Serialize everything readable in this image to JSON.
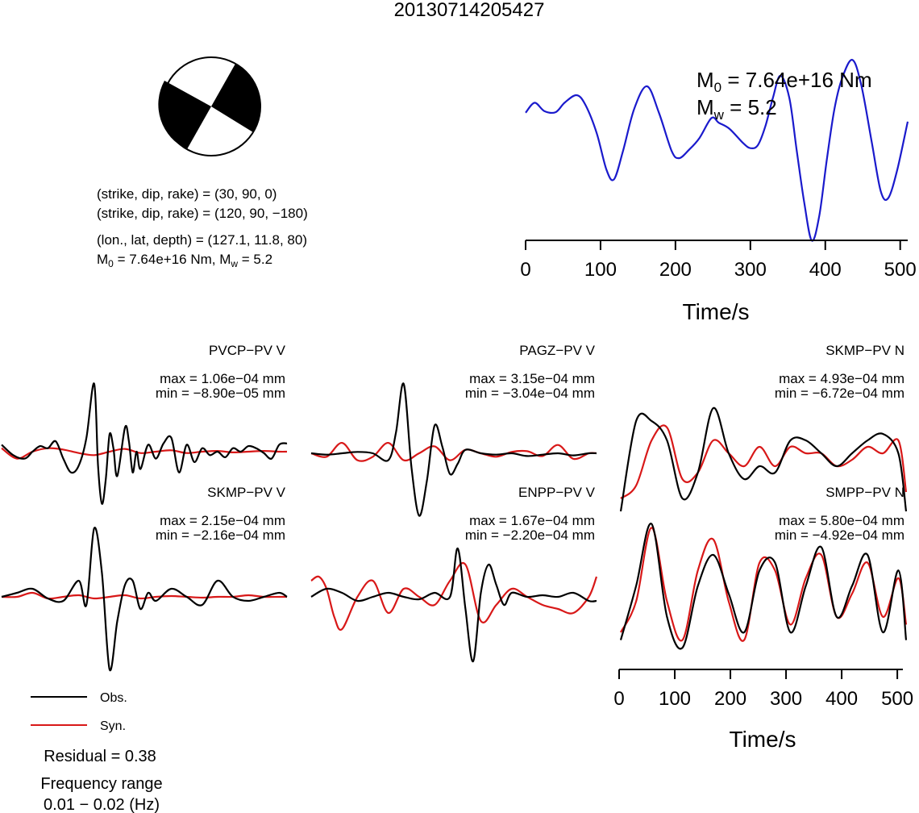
{
  "title": "20130714205427",
  "mechanism": {
    "line1": "(strike, dip, rake) = (30, 90, 0)",
    "line2": "(strike, dip, rake) = (120, 90, −180)",
    "line3": "(lon., lat, depth) = (127.1, 11.8, 80)",
    "m0_prefix": "M",
    "m0_sub": "0",
    "m0_value": " = 7.64e+16 Nm, M",
    "mw_sub": "w",
    "mw_value": " = 5.2"
  },
  "stf": {
    "m0_label": "M",
    "m0_sub": "0",
    "m0_text": " = 7.64e+16 Nm",
    "mw_label": "M",
    "mw_sub": "w",
    "mw_text": " = 5.2",
    "xlabel": "Time/s",
    "ticks": [
      "0",
      "100",
      "200",
      "300",
      "400",
      "500"
    ]
  },
  "bottom_axis": {
    "xlabel": "Time/s",
    "ticks": [
      "0",
      "100",
      "200",
      "300",
      "400",
      "500"
    ]
  },
  "legend": {
    "obs": "Obs.",
    "syn": "Syn.",
    "obs_color": "#000000",
    "syn_color": "#d81818",
    "stf_color": "#1a1acc"
  },
  "residual": "Residual = 0.38",
  "freq_label": "Frequency range",
  "freq_value": "0.01 − 0.02 (Hz)",
  "stations": [
    {
      "name": "PVCP−PV V",
      "max": "max = 1.06e−04 mm",
      "min": "min = −8.90e−05 mm"
    },
    {
      "name": "PAGZ−PV V",
      "max": "max = 3.15e−04 mm",
      "min": "min = −3.04e−04 mm"
    },
    {
      "name": "SKMP−PV N",
      "max": "max = 4.93e−04 mm",
      "min": "min = −6.72e−04 mm"
    },
    {
      "name": "SKMP−PV V",
      "max": "max = 2.15e−04 mm",
      "min": "min = −2.16e−04 mm"
    },
    {
      "name": "ENPP−PV V",
      "max": "max = 1.67e−04 mm",
      "min": "min = −2.20e−04 mm"
    },
    {
      "name": "SMPP−PV N",
      "max": "max = 5.80e−04 mm",
      "min": "min = −4.92e−04 mm"
    }
  ],
  "chart_data": [
    {
      "type": "line",
      "series": [
        {
          "t": [
            0,
            12,
            25,
            40,
            52,
            68,
            80,
            95,
            108,
            118,
            130,
            145,
            162,
            178,
            195,
            205,
            218,
            232,
            248,
            258,
            272,
            290,
            300,
            310,
            320,
            330,
            340,
            352,
            362,
            372,
            382,
            392,
            402,
            412,
            422,
            436,
            448,
            462,
            474,
            484,
            496,
            510
          ],
          "values": [
            0.55,
            0.72,
            0.58,
            0.56,
            0.72,
            0.85,
            0.68,
            0.2,
            -0.42,
            -0.58,
            -0.1,
            0.62,
            1.0,
            0.55,
            -0.1,
            -0.22,
            -0.08,
            0.12,
            0.46,
            0.38,
            0.28,
            0.04,
            -0.05,
            0.0,
            0.32,
            0.8,
            1.18,
            0.8,
            -0.1,
            -0.98,
            -1.62,
            -1.2,
            -0.25,
            0.6,
            1.12,
            1.45,
            1.02,
            0.05,
            -0.78,
            -0.9,
            -0.42,
            0.4
          ],
          "name": ""
        }
      ],
      "xlabel": "Time/s",
      "xlim": [
        0,
        510
      ]
    },
    {
      "type": "line",
      "station": "PVCP−PV V",
      "series": [
        {
          "name": "Obs.",
          "t": [
            0,
            15,
            30,
            40,
            50,
            60,
            70,
            80,
            90,
            100,
            110,
            120,
            125,
            130,
            135,
            140,
            145,
            150,
            160,
            165,
            170,
            175,
            180,
            190,
            200,
            210,
            220,
            230,
            240,
            250,
            260,
            270,
            280,
            290,
            300,
            310,
            320,
            330,
            340,
            350,
            360,
            370
          ],
          "values": [
            0.1,
            -0.05,
            -0.1,
            0.0,
            0.08,
            0.05,
            0.15,
            -0.1,
            -0.3,
            -0.2,
            0.2,
            0.98,
            -0.2,
            -0.75,
            -0.4,
            0.25,
            0.05,
            -0.35,
            0.35,
            0.15,
            -0.3,
            0.0,
            -0.25,
            0.1,
            -0.1,
            0.12,
            0.2,
            -0.3,
            0.1,
            -0.15,
            0.05,
            -0.05,
            0.0,
            -0.08,
            0.05,
            0.0,
            0.08,
            0.05,
            -0.02,
            -0.1,
            0.1,
            0.12
          ]
        },
        {
          "name": "Syn.",
          "t": [
            0,
            20,
            40,
            60,
            80,
            100,
            120,
            140,
            160,
            180,
            200,
            220,
            240,
            260,
            280,
            300,
            320,
            340,
            360,
            370
          ],
          "values": [
            0.05,
            -0.1,
            0.0,
            0.05,
            0.03,
            -0.02,
            -0.05,
            0.0,
            0.04,
            -0.02,
            0.0,
            0.02,
            -0.02,
            0.0,
            0.01,
            -0.01,
            0.0,
            0.01,
            0.0,
            0.0
          ]
        }
      ]
    },
    {
      "type": "line",
      "station": "PAGZ−PV V",
      "series": [
        {
          "name": "Obs.",
          "t": [
            0,
            20,
            40,
            60,
            80,
            100,
            110,
            120,
            130,
            140,
            150,
            160,
            170,
            180,
            190,
            200,
            220,
            240,
            260,
            280,
            300,
            320,
            340,
            360,
            370
          ],
          "values": [
            0.0,
            -0.02,
            0.0,
            0.02,
            0.0,
            -0.1,
            0.3,
            1.0,
            -0.2,
            -0.9,
            -0.4,
            0.4,
            0.1,
            -0.3,
            -0.15,
            0.05,
            0.0,
            -0.02,
            0.0,
            -0.04,
            -0.02,
            0.0,
            -0.03,
            0.0,
            0.0
          ]
        },
        {
          "name": "Syn.",
          "t": [
            0,
            20,
            40,
            60,
            80,
            100,
            120,
            140,
            160,
            180,
            200,
            220,
            240,
            260,
            280,
            300,
            320,
            340,
            360,
            370
          ],
          "values": [
            0.0,
            -0.05,
            0.15,
            -0.1,
            -0.05,
            0.15,
            -0.1,
            0.0,
            0.1,
            -0.1,
            0.05,
            0.0,
            -0.05,
            0.02,
            0.03,
            -0.04,
            0.12,
            -0.08,
            0.0,
            0.0
          ]
        }
      ]
    },
    {
      "type": "line",
      "station": "SKMP−PV N",
      "series": [
        {
          "name": "Obs.",
          "t": [
            0,
            20,
            40,
            60,
            80,
            100,
            120,
            140,
            160,
            180,
            200,
            220,
            240,
            260,
            280,
            300,
            320,
            340,
            360,
            370
          ],
          "values": [
            -0.8,
            0.6,
            0.6,
            0.3,
            -0.6,
            -0.2,
            0.8,
            0.1,
            -0.3,
            -0.1,
            -0.2,
            0.3,
            0.3,
            0.1,
            -0.1,
            0.1,
            0.3,
            0.4,
            0.1,
            -0.8
          ]
        },
        {
          "name": "Syn.",
          "t": [
            0,
            20,
            40,
            60,
            80,
            100,
            120,
            140,
            160,
            180,
            200,
            220,
            240,
            260,
            280,
            300,
            320,
            340,
            360,
            370
          ],
          "values": [
            -0.6,
            -0.4,
            0.3,
            0.5,
            -0.3,
            -0.2,
            0.3,
            0.1,
            -0.1,
            0.2,
            -0.1,
            0.2,
            0.1,
            0.1,
            -0.1,
            0.0,
            0.2,
            0.1,
            0.3,
            -0.5
          ]
        }
      ]
    },
    {
      "type": "line",
      "station": "SKMP−PV V",
      "series": [
        {
          "name": "Obs.",
          "t": [
            0,
            20,
            40,
            60,
            80,
            100,
            110,
            120,
            130,
            140,
            150,
            160,
            170,
            180,
            190,
            200,
            220,
            240,
            260,
            280,
            300,
            320,
            340,
            360,
            370
          ],
          "values": [
            0.0,
            0.05,
            0.1,
            -0.02,
            -0.05,
            0.2,
            -0.1,
            0.85,
            0.3,
            -0.9,
            -0.3,
            0.15,
            0.2,
            -0.15,
            0.05,
            -0.05,
            0.1,
            0.0,
            -0.1,
            0.2,
            0.0,
            -0.05,
            0.0,
            0.05,
            0.0
          ]
        },
        {
          "name": "Syn.",
          "t": [
            0,
            20,
            40,
            60,
            80,
            100,
            120,
            140,
            160,
            180,
            200,
            220,
            240,
            260,
            280,
            300,
            320,
            340,
            360,
            370
          ],
          "values": [
            0.0,
            0.0,
            0.05,
            -0.02,
            0.0,
            0.02,
            -0.02,
            0.0,
            0.02,
            -0.02,
            0.0,
            0.01,
            0.0,
            -0.01,
            0.0,
            0.0,
            0.02,
            0.0,
            0.0,
            0.0
          ]
        }
      ]
    },
    {
      "type": "line",
      "station": "ENPP−PV V",
      "series": [
        {
          "name": "Obs.",
          "t": [
            0,
            20,
            40,
            60,
            80,
            100,
            120,
            140,
            160,
            180,
            190,
            200,
            210,
            220,
            230,
            240,
            250,
            260,
            280,
            300,
            320,
            340,
            360,
            370
          ],
          "values": [
            0.0,
            0.1,
            0.05,
            -0.05,
            0.0,
            0.05,
            0.0,
            -0.03,
            0.05,
            0.0,
            0.6,
            -0.15,
            -0.8,
            0.05,
            0.4,
            0.15,
            -0.1,
            0.05,
            0.0,
            0.02,
            0.0,
            0.05,
            -0.05,
            -0.05
          ]
        },
        {
          "name": "Syn.",
          "t": [
            0,
            10,
            20,
            30,
            40,
            60,
            80,
            100,
            120,
            140,
            160,
            180,
            200,
            220,
            240,
            260,
            280,
            300,
            320,
            340,
            360,
            370
          ],
          "values": [
            0.2,
            0.25,
            0.1,
            -0.25,
            -0.4,
            0.0,
            0.2,
            -0.2,
            0.1,
            0.0,
            -0.1,
            0.2,
            0.4,
            -0.3,
            -0.1,
            0.1,
            0.0,
            -0.1,
            -0.15,
            -0.2,
            0.0,
            0.25
          ]
        }
      ]
    },
    {
      "type": "line",
      "station": "SMPP−PV N",
      "series": [
        {
          "name": "Obs.",
          "t": [
            0,
            20,
            40,
            60,
            80,
            100,
            120,
            140,
            160,
            180,
            200,
            220,
            240,
            260,
            280,
            300,
            320,
            340,
            360,
            370
          ],
          "values": [
            -0.6,
            0.1,
            0.9,
            -0.3,
            -0.7,
            0.1,
            0.5,
            0.0,
            -0.5,
            0.3,
            0.4,
            -0.5,
            0.1,
            0.6,
            -0.3,
            0.1,
            0.5,
            -0.5,
            0.3,
            -0.6
          ]
        },
        {
          "name": "Syn.",
          "t": [
            0,
            20,
            40,
            60,
            80,
            100,
            120,
            140,
            160,
            180,
            200,
            220,
            240,
            260,
            280,
            300,
            320,
            340,
            360,
            370
          ],
          "values": [
            -0.5,
            -0.1,
            0.85,
            -0.1,
            -0.6,
            0.3,
            0.7,
            -0.1,
            -0.6,
            0.4,
            0.3,
            -0.4,
            0.2,
            0.5,
            -0.3,
            0.0,
            0.4,
            -0.3,
            0.2,
            -0.4
          ]
        }
      ]
    }
  ]
}
